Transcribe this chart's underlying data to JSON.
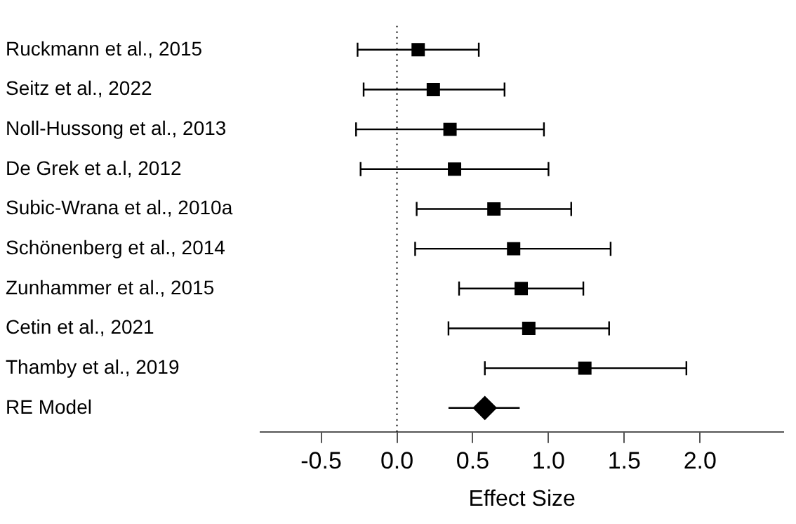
{
  "chart_data": {
    "type": "scatter",
    "orientation": "horizontal",
    "xlabel": "Effect Size",
    "categories": [
      "Ruckmann et al., 2015",
      "Seitz et al., 2022",
      "Noll-Hussong et al., 2013",
      "De Grek et a.l, 2012",
      "Subic-Wrana et al., 2010a",
      "Schönenberg et al., 2014",
      "Zunhammer et al., 2015",
      "Cetin et al., 2021",
      "Thamby et al., 2019",
      "RE Model"
    ],
    "series": [
      {
        "color": "#000000",
        "marker": "square",
        "values": [
          0.14,
          0.24,
          0.35,
          0.38,
          0.64,
          0.77,
          0.82,
          0.87,
          1.24,
          null
        ],
        "errors": [
          [
            -0.26,
            0.54
          ],
          [
            -0.22,
            0.71
          ],
          [
            -0.27,
            0.97
          ],
          [
            -0.24,
            1.0
          ],
          [
            0.13,
            1.15
          ],
          [
            0.12,
            1.41
          ],
          [
            0.41,
            1.23
          ],
          [
            0.34,
            1.4
          ],
          [
            0.58,
            1.91
          ],
          null
        ]
      },
      {
        "color": "#000000",
        "marker": "diamond",
        "values": [
          null,
          null,
          null,
          null,
          null,
          null,
          null,
          null,
          null,
          0.58
        ],
        "errors": [
          null,
          null,
          null,
          null,
          null,
          null,
          null,
          null,
          null,
          [
            0.34,
            0.81
          ]
        ]
      }
    ],
    "xlim": [
      -0.9,
      2.55
    ],
    "xticks": [
      {
        "value": -0.5,
        "label": "-0.5"
      },
      {
        "value": 0,
        "label": "0.0"
      },
      {
        "value": 0.5,
        "label": "0.5"
      },
      {
        "value": 1,
        "label": "1.0"
      },
      {
        "value": 1.5,
        "label": "1.5"
      },
      {
        "value": 2,
        "label": "2.0"
      }
    ],
    "ref_lines": [
      {
        "axis": "x",
        "value": 0,
        "line_style": "dotted"
      }
    ],
    "grid": false,
    "legend": false
  }
}
